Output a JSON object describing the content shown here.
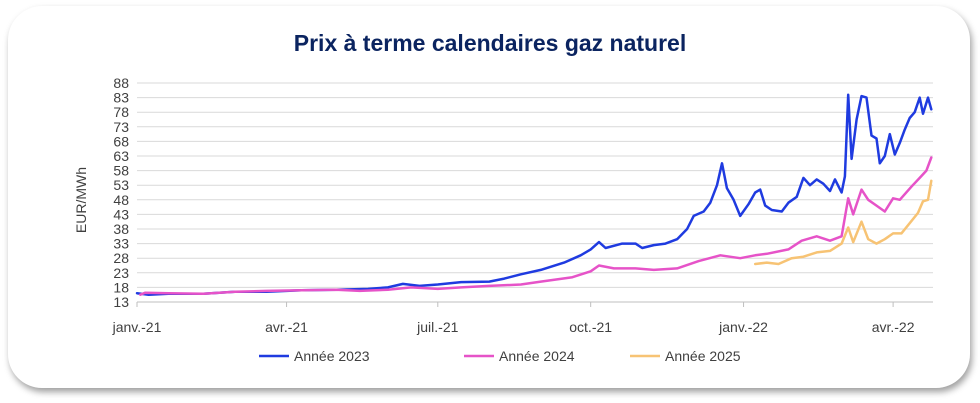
{
  "chart_data": {
    "type": "line",
    "title": "Prix à terme calendaires gaz naturel",
    "ylabel": "EUR/MWh",
    "xlabel": "",
    "ylim": [
      13,
      88
    ],
    "yticks": [
      13,
      18,
      23,
      28,
      33,
      38,
      43,
      48,
      53,
      58,
      63,
      68,
      73,
      78,
      83,
      88
    ],
    "xlim": [
      "2021-01-01",
      "2022-04-25"
    ],
    "xticks": [
      {
        "date": "2021-01-01",
        "label": "janv.-21"
      },
      {
        "date": "2021-04-01",
        "label": "avr.-21"
      },
      {
        "date": "2021-07-01",
        "label": "juil.-21"
      },
      {
        "date": "2021-10-01",
        "label": "oct.-21"
      },
      {
        "date": "2022-01-01",
        "label": "janv.-22"
      },
      {
        "date": "2022-04-01",
        "label": "avr.-22"
      }
    ],
    "grid": true,
    "legend": "bottom",
    "series": [
      {
        "name": "Année 2023",
        "color": "#1f3be0",
        "points": [
          [
            "2021-01-01",
            16.0
          ],
          [
            "2021-01-08",
            15.5
          ],
          [
            "2021-01-20",
            15.8
          ],
          [
            "2021-02-10",
            15.8
          ],
          [
            "2021-03-01",
            16.5
          ],
          [
            "2021-03-20",
            16.5
          ],
          [
            "2021-04-10",
            17.0
          ],
          [
            "2021-05-01",
            17.2
          ],
          [
            "2021-05-20",
            17.5
          ],
          [
            "2021-06-01",
            18.0
          ],
          [
            "2021-06-10",
            19.2
          ],
          [
            "2021-06-20",
            18.5
          ],
          [
            "2021-07-01",
            19.0
          ],
          [
            "2021-07-15",
            19.8
          ],
          [
            "2021-08-01",
            20.0
          ],
          [
            "2021-08-10",
            21.0
          ],
          [
            "2021-08-20",
            22.5
          ],
          [
            "2021-09-01",
            24.0
          ],
          [
            "2021-09-15",
            26.5
          ],
          [
            "2021-09-25",
            29.0
          ],
          [
            "2021-10-01",
            31.0
          ],
          [
            "2021-10-06",
            33.5
          ],
          [
            "2021-10-10",
            31.5
          ],
          [
            "2021-10-20",
            33.0
          ],
          [
            "2021-10-28",
            33.0
          ],
          [
            "2021-11-01",
            31.5
          ],
          [
            "2021-11-08",
            32.5
          ],
          [
            "2021-11-15",
            33.0
          ],
          [
            "2021-11-22",
            34.5
          ],
          [
            "2021-11-28",
            38.0
          ],
          [
            "2021-12-02",
            42.5
          ],
          [
            "2021-12-08",
            44.0
          ],
          [
            "2021-12-12",
            47.0
          ],
          [
            "2021-12-16",
            53.0
          ],
          [
            "2021-12-19",
            60.5
          ],
          [
            "2021-12-22",
            52.0
          ],
          [
            "2021-12-26",
            48.0
          ],
          [
            "2021-12-30",
            42.5
          ],
          [
            "2022-01-04",
            46.5
          ],
          [
            "2022-01-08",
            50.5
          ],
          [
            "2022-01-11",
            51.5
          ],
          [
            "2022-01-14",
            46.0
          ],
          [
            "2022-01-18",
            44.5
          ],
          [
            "2022-01-24",
            44.0
          ],
          [
            "2022-01-28",
            47.0
          ],
          [
            "2022-02-02",
            49.0
          ],
          [
            "2022-02-06",
            55.5
          ],
          [
            "2022-02-10",
            53.0
          ],
          [
            "2022-02-14",
            55.0
          ],
          [
            "2022-02-18",
            53.5
          ],
          [
            "2022-02-22",
            51.0
          ],
          [
            "2022-02-25",
            55.0
          ],
          [
            "2022-03-01",
            50.5
          ],
          [
            "2022-03-03",
            56.0
          ],
          [
            "2022-03-05",
            84.0
          ],
          [
            "2022-03-07",
            62.0
          ],
          [
            "2022-03-10",
            75.5
          ],
          [
            "2022-03-13",
            83.5
          ],
          [
            "2022-03-16",
            83.0
          ],
          [
            "2022-03-19",
            70.0
          ],
          [
            "2022-03-22",
            69.0
          ],
          [
            "2022-03-24",
            60.5
          ],
          [
            "2022-03-27",
            63.0
          ],
          [
            "2022-03-30",
            70.5
          ],
          [
            "2022-04-02",
            63.5
          ],
          [
            "2022-04-05",
            67.5
          ],
          [
            "2022-04-08",
            72.0
          ],
          [
            "2022-04-11",
            76.0
          ],
          [
            "2022-04-14",
            78.0
          ],
          [
            "2022-04-17",
            83.0
          ],
          [
            "2022-04-19",
            77.5
          ],
          [
            "2022-04-22",
            83.0
          ],
          [
            "2022-04-24",
            79.0
          ]
        ]
      },
      {
        "name": "Année 2024",
        "color": "#e653c8",
        "points": [
          [
            "2021-01-03",
            15.5
          ],
          [
            "2021-01-06",
            16.2
          ],
          [
            "2021-01-20",
            16.0
          ],
          [
            "2021-02-10",
            15.8
          ],
          [
            "2021-03-01",
            16.5
          ],
          [
            "2021-03-20",
            16.8
          ],
          [
            "2021-04-10",
            17.0
          ],
          [
            "2021-05-01",
            17.2
          ],
          [
            "2021-05-15",
            16.8
          ],
          [
            "2021-06-01",
            17.2
          ],
          [
            "2021-06-15",
            18.0
          ],
          [
            "2021-07-01",
            17.5
          ],
          [
            "2021-07-15",
            18.0
          ],
          [
            "2021-08-01",
            18.5
          ],
          [
            "2021-08-20",
            19.0
          ],
          [
            "2021-09-01",
            20.0
          ],
          [
            "2021-09-20",
            21.5
          ],
          [
            "2021-10-01",
            23.5
          ],
          [
            "2021-10-06",
            25.5
          ],
          [
            "2021-10-15",
            24.5
          ],
          [
            "2021-10-28",
            24.5
          ],
          [
            "2021-11-08",
            24.0
          ],
          [
            "2021-11-22",
            24.5
          ],
          [
            "2021-12-05",
            27.0
          ],
          [
            "2021-12-18",
            29.0
          ],
          [
            "2021-12-30",
            28.0
          ],
          [
            "2022-01-08",
            29.0
          ],
          [
            "2022-01-15",
            29.5
          ],
          [
            "2022-01-28",
            31.0
          ],
          [
            "2022-02-05",
            34.0
          ],
          [
            "2022-02-14",
            35.5
          ],
          [
            "2022-02-22",
            34.0
          ],
          [
            "2022-03-01",
            35.5
          ],
          [
            "2022-03-05",
            48.5
          ],
          [
            "2022-03-08",
            43.0
          ],
          [
            "2022-03-13",
            51.5
          ],
          [
            "2022-03-17",
            48.0
          ],
          [
            "2022-03-22",
            46.0
          ],
          [
            "2022-03-27",
            44.0
          ],
          [
            "2022-04-01",
            48.5
          ],
          [
            "2022-04-05",
            48.0
          ],
          [
            "2022-04-12",
            52.5
          ],
          [
            "2022-04-17",
            55.5
          ],
          [
            "2022-04-21",
            58.0
          ],
          [
            "2022-04-24",
            62.5
          ]
        ]
      },
      {
        "name": "Année 2025",
        "color": "#f7c374",
        "points": [
          [
            "2022-01-08",
            26.0
          ],
          [
            "2022-01-15",
            26.5
          ],
          [
            "2022-01-22",
            26.0
          ],
          [
            "2022-01-30",
            28.0
          ],
          [
            "2022-02-06",
            28.5
          ],
          [
            "2022-02-14",
            30.0
          ],
          [
            "2022-02-22",
            30.5
          ],
          [
            "2022-03-01",
            33.0
          ],
          [
            "2022-03-05",
            38.5
          ],
          [
            "2022-03-08",
            33.5
          ],
          [
            "2022-03-13",
            40.5
          ],
          [
            "2022-03-17",
            34.5
          ],
          [
            "2022-03-22",
            33.0
          ],
          [
            "2022-03-27",
            34.5
          ],
          [
            "2022-04-01",
            36.5
          ],
          [
            "2022-04-06",
            36.5
          ],
          [
            "2022-04-11",
            40.0
          ],
          [
            "2022-04-16",
            43.5
          ],
          [
            "2022-04-19",
            47.5
          ],
          [
            "2022-04-22",
            48.0
          ],
          [
            "2022-04-24",
            54.5
          ]
        ]
      }
    ]
  }
}
